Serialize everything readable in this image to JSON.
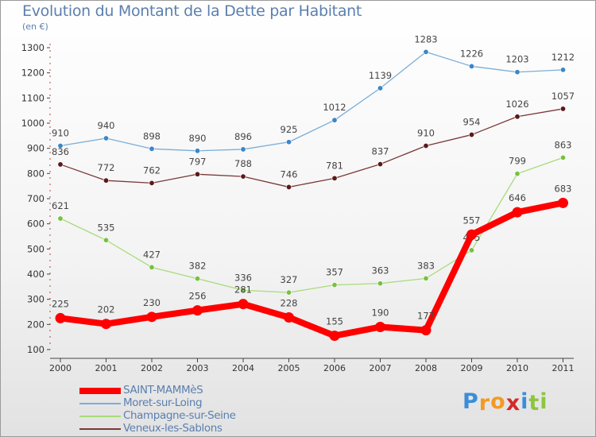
{
  "title": "Evolution du Montant de la Dette par Habitant",
  "subtitle": "(en €)",
  "logo": {
    "letters": [
      "P",
      "r",
      "o",
      "x",
      "i",
      "t",
      "i"
    ],
    "colors": [
      "#3a8ed8",
      "#f39a24",
      "#f39a24",
      "#d42a2a",
      "#3a8ed8",
      "#8cc63f",
      "#8cc63f"
    ]
  },
  "chart_data": {
    "type": "line",
    "title": "Evolution du Montant de la Dette par Habitant",
    "ylabel": "(en €)",
    "xlabel": "",
    "x": [
      "2000",
      "2001",
      "2002",
      "2003",
      "2004",
      "2005",
      "2006",
      "2007",
      "2008",
      "2009",
      "2010",
      "2011"
    ],
    "yticks": [
      100,
      200,
      300,
      400,
      500,
      600,
      700,
      800,
      900,
      1000,
      1100,
      1200,
      1300
    ],
    "ylim": [
      100,
      1300
    ],
    "grid": false,
    "legend_position": "bottom-left",
    "series": [
      {
        "name": "Moret-sur-Loing",
        "color": "#7aaed8",
        "point_color": "#3a86c8",
        "values": [
          910,
          940,
          898,
          890,
          896,
          925,
          1012,
          1139,
          1283,
          1226,
          1203,
          1212
        ]
      },
      {
        "name": "Veneux-les-Sablons",
        "color": "#7a3838",
        "point_color": "#5a1a1a",
        "values": [
          836,
          772,
          762,
          797,
          788,
          746,
          781,
          837,
          910,
          954,
          1026,
          1057
        ]
      },
      {
        "name": "Champagne-sur-Seine",
        "color": "#a8dc78",
        "point_color": "#78c040",
        "values": [
          621,
          535,
          427,
          382,
          336,
          327,
          357,
          363,
          383,
          495,
          799,
          863
        ]
      },
      {
        "name": "SAINT-MAMMèS",
        "color": "#ff0000",
        "point_color": "#ff0000",
        "values": [
          225,
          202,
          230,
          256,
          281,
          228,
          155,
          190,
          177,
          557,
          646,
          683
        ]
      }
    ],
    "legend_order": [
      "SAINT-MAMMèS",
      "Moret-sur-Loing",
      "Champagne-sur-Seine",
      "Veneux-les-Sablons"
    ]
  }
}
